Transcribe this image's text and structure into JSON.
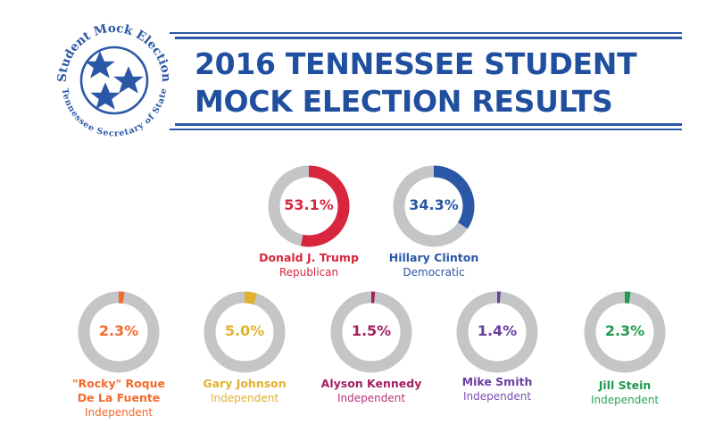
{
  "header": {
    "title_line1": "2016 TENNESSEE STUDENT",
    "title_line2": "MOCK ELECTION RESULTS",
    "seal": {
      "top_text": "Student Mock Election",
      "bottom_text": "Tennessee Secretary of State",
      "icon": "three-stars-icon",
      "color": "#2a57a6"
    }
  },
  "colors": {
    "ring_background": "#c4c5c7",
    "title": "#1f4f9e"
  },
  "candidates": [
    {
      "name": "Donald J. Trump",
      "name_lines": [
        "Donald J. Trump"
      ],
      "party": "Republican",
      "percent": 53.1,
      "label": "53.1%",
      "color": "#d7263d",
      "party_color": "#d7263d"
    },
    {
      "name": "Hillary Clinton",
      "name_lines": [
        "Hillary Clinton"
      ],
      "party": "Democratic",
      "percent": 34.3,
      "label": "34.3%",
      "color": "#2a57a6",
      "party_color": "#2a57a6"
    },
    {
      "name": "\"Rocky\" Roque De La Fuente",
      "name_lines": [
        "\"Rocky\" Roque",
        "De La Fuente"
      ],
      "party": "Independent",
      "percent": 2.3,
      "label": "2.3%",
      "color": "#f26a2e",
      "party_color": "#f26a2e"
    },
    {
      "name": "Gary Johnson",
      "name_lines": [
        "Gary Johnson"
      ],
      "party": "Independent",
      "percent": 5.0,
      "label": "5.0%",
      "color": "#e0b12e",
      "party_color": "#e0b12e"
    },
    {
      "name": "Alyson Kennedy",
      "name_lines": [
        "Alyson Kennedy"
      ],
      "party": "Independent",
      "percent": 1.5,
      "label": "1.5%",
      "color": "#a3215f",
      "party_color": "#b8357a"
    },
    {
      "name": "Mike Smith",
      "name_lines": [
        "Mike Smith"
      ],
      "party": "Independent",
      "percent": 1.4,
      "label": "1.4%",
      "color": "#6a3ea1",
      "party_color": "#7a4fb0"
    },
    {
      "name": "Jill Stein",
      "name_lines": [
        "Jill Stein"
      ],
      "party": "Independent",
      "percent": 2.3,
      "label": "2.3%",
      "color": "#1f9a4f",
      "party_color": "#2aa35a"
    }
  ],
  "chart_data": {
    "type": "pie",
    "subtype": "donut",
    "title": "2016 Tennessee Student Mock Election Results",
    "categories": [
      "Donald J. Trump",
      "Hillary Clinton",
      "\"Rocky\" Roque De La Fuente",
      "Gary Johnson",
      "Alyson Kennedy",
      "Mike Smith",
      "Jill Stein"
    ],
    "parties": [
      "Republican",
      "Democratic",
      "Independent",
      "Independent",
      "Independent",
      "Independent",
      "Independent"
    ],
    "values": [
      53.1,
      34.3,
      2.3,
      5.0,
      1.5,
      1.4,
      2.3
    ],
    "unit": "%",
    "colors": [
      "#d7263d",
      "#2a57a6",
      "#f26a2e",
      "#e0b12e",
      "#a3215f",
      "#6a3ea1",
      "#1f9a4f"
    ],
    "note": "Each candidate shown as an individual donut ring (value of 100%), arc starts at 12 o'clock going clockwise"
  }
}
